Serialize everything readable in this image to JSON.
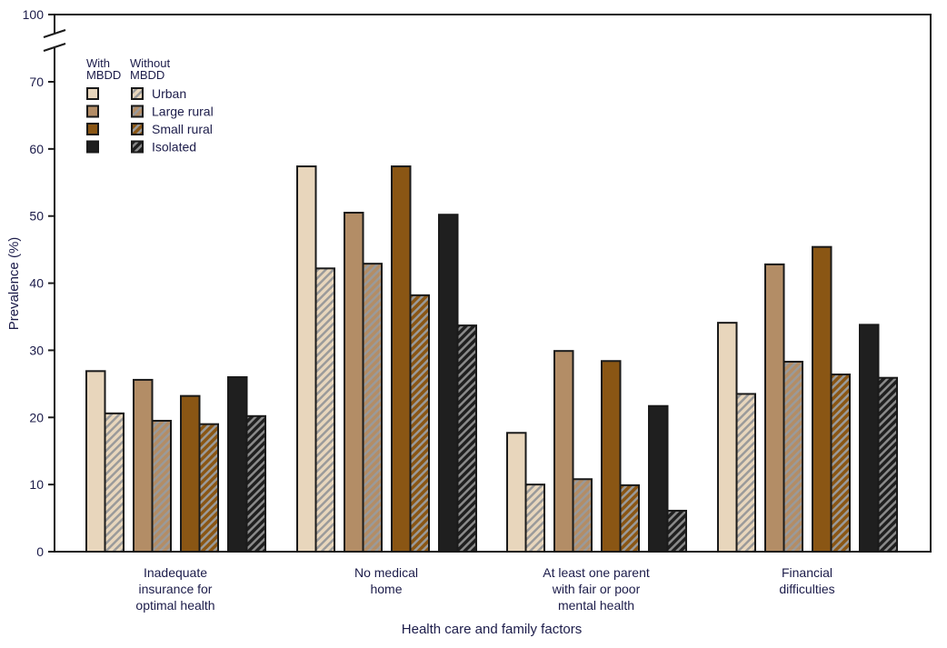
{
  "chart_data": {
    "type": "bar",
    "title": "",
    "xlabel": "Health care and family factors",
    "ylabel": "Prevalence (%)",
    "ylim": [
      0,
      100
    ],
    "y_axis_break": [
      70,
      100
    ],
    "yticks": [
      0,
      10,
      20,
      30,
      40,
      50,
      60,
      70,
      100
    ],
    "grid": false,
    "legend_position": "top-left",
    "legend": {
      "col_headers": [
        "With\nMBDD",
        "Without\nMBDD"
      ],
      "entries": [
        "Urban",
        "Large rural",
        "Small rural",
        "Isolated"
      ]
    },
    "categories": [
      [
        "Inadequate",
        "insurance for",
        "optimal health"
      ],
      [
        "No medical",
        "home"
      ],
      [
        "At least one parent",
        "with fair or poor",
        "mental health"
      ],
      [
        "Financial",
        "difficulties"
      ]
    ],
    "series": [
      {
        "name": "Urban, with MBDD",
        "color": "#e8d6bc",
        "hatched": false,
        "values": [
          26.9,
          57.4,
          17.7,
          34.1
        ]
      },
      {
        "name": "Urban, without MBDD",
        "color": "#e8d6bc",
        "hatched": true,
        "values": [
          20.6,
          42.2,
          10.0,
          23.5
        ]
      },
      {
        "name": "Large rural, with MBDD",
        "color": "#b38d66",
        "hatched": false,
        "values": [
          25.6,
          50.5,
          29.9,
          42.8
        ]
      },
      {
        "name": "Large rural, without MBDD",
        "color": "#b38d66",
        "hatched": true,
        "values": [
          19.5,
          42.9,
          10.8,
          28.3
        ]
      },
      {
        "name": "Small rural, with MBDD",
        "color": "#8a5614",
        "hatched": false,
        "values": [
          23.2,
          57.4,
          28.4,
          45.4
        ]
      },
      {
        "name": "Small rural, without MBDD",
        "color": "#8a5614",
        "hatched": true,
        "values": [
          19.0,
          38.2,
          9.9,
          26.4
        ]
      },
      {
        "name": "Isolated, with MBDD",
        "color": "#1f1f1f",
        "hatched": false,
        "values": [
          26.0,
          50.2,
          21.7,
          33.8
        ]
      },
      {
        "name": "Isolated, without MBDD",
        "color": "#1f1f1f",
        "hatched": true,
        "values": [
          20.2,
          33.7,
          6.1,
          25.9
        ]
      }
    ]
  }
}
